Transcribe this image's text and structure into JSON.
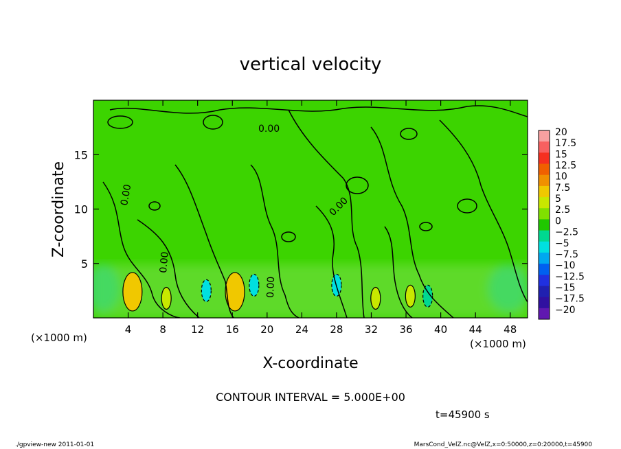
{
  "chart_data": {
    "type": "heatmap",
    "title": "vertical velocity",
    "xlabel": "X-coordinate",
    "ylabel": "Z-coordinate",
    "x_unit_left": "(×1000 m)",
    "x_unit_right": "(×1000 m)",
    "xlim": [
      0,
      50
    ],
    "ylim": [
      0,
      20
    ],
    "x_ticks": [
      4,
      8,
      12,
      16,
      20,
      24,
      28,
      32,
      36,
      40,
      44,
      48
    ],
    "y_ticks": [
      5,
      10,
      15
    ],
    "contour_interval_text": "CONTOUR INTERVAL = 5.000E+00",
    "contour_label": "0.00",
    "time_text": "t=45900 s",
    "colorbar": {
      "labels": [
        "20",
        "17.5",
        "15",
        "12.5",
        "10",
        "7.5",
        "5",
        "2.5",
        "0",
        "−2.5",
        "−5",
        "−7.5",
        "−10",
        "−12.5",
        "−15",
        "−17.5",
        "−20"
      ],
      "colors": [
        "#f7a0a0",
        "#f76060",
        "#f53020",
        "#f06000",
        "#f09000",
        "#f0c800",
        "#c8e800",
        "#80e000",
        "#20c800",
        "#00d890",
        "#00e0e0",
        "#00a8f0",
        "#0060f0",
        "#2030e0",
        "#2020b0",
        "#3010a0",
        "#6018b0"
      ]
    },
    "features": [
      {
        "x": 4.5,
        "z": 2.4,
        "value": 7.5
      },
      {
        "x": 16.3,
        "z": 2.4,
        "value": 7.5
      },
      {
        "x": 8.4,
        "z": 1.8,
        "value": 5
      },
      {
        "x": 32.5,
        "z": 1.8,
        "value": 5
      },
      {
        "x": 36.5,
        "z": 2.0,
        "value": 5
      },
      {
        "x": 13.0,
        "z": 2.5,
        "value": -5
      },
      {
        "x": 18.5,
        "z": 3.0,
        "value": -5
      },
      {
        "x": 28.0,
        "z": 3.0,
        "value": -5
      },
      {
        "x": 38.5,
        "z": 2.0,
        "value": -2.5
      }
    ]
  },
  "footer": {
    "left": "./gpview-new   2011-01-01",
    "right": "MarsCond_VelZ.nc@VelZ,x=0:50000,z=0:20000,t=45900"
  }
}
